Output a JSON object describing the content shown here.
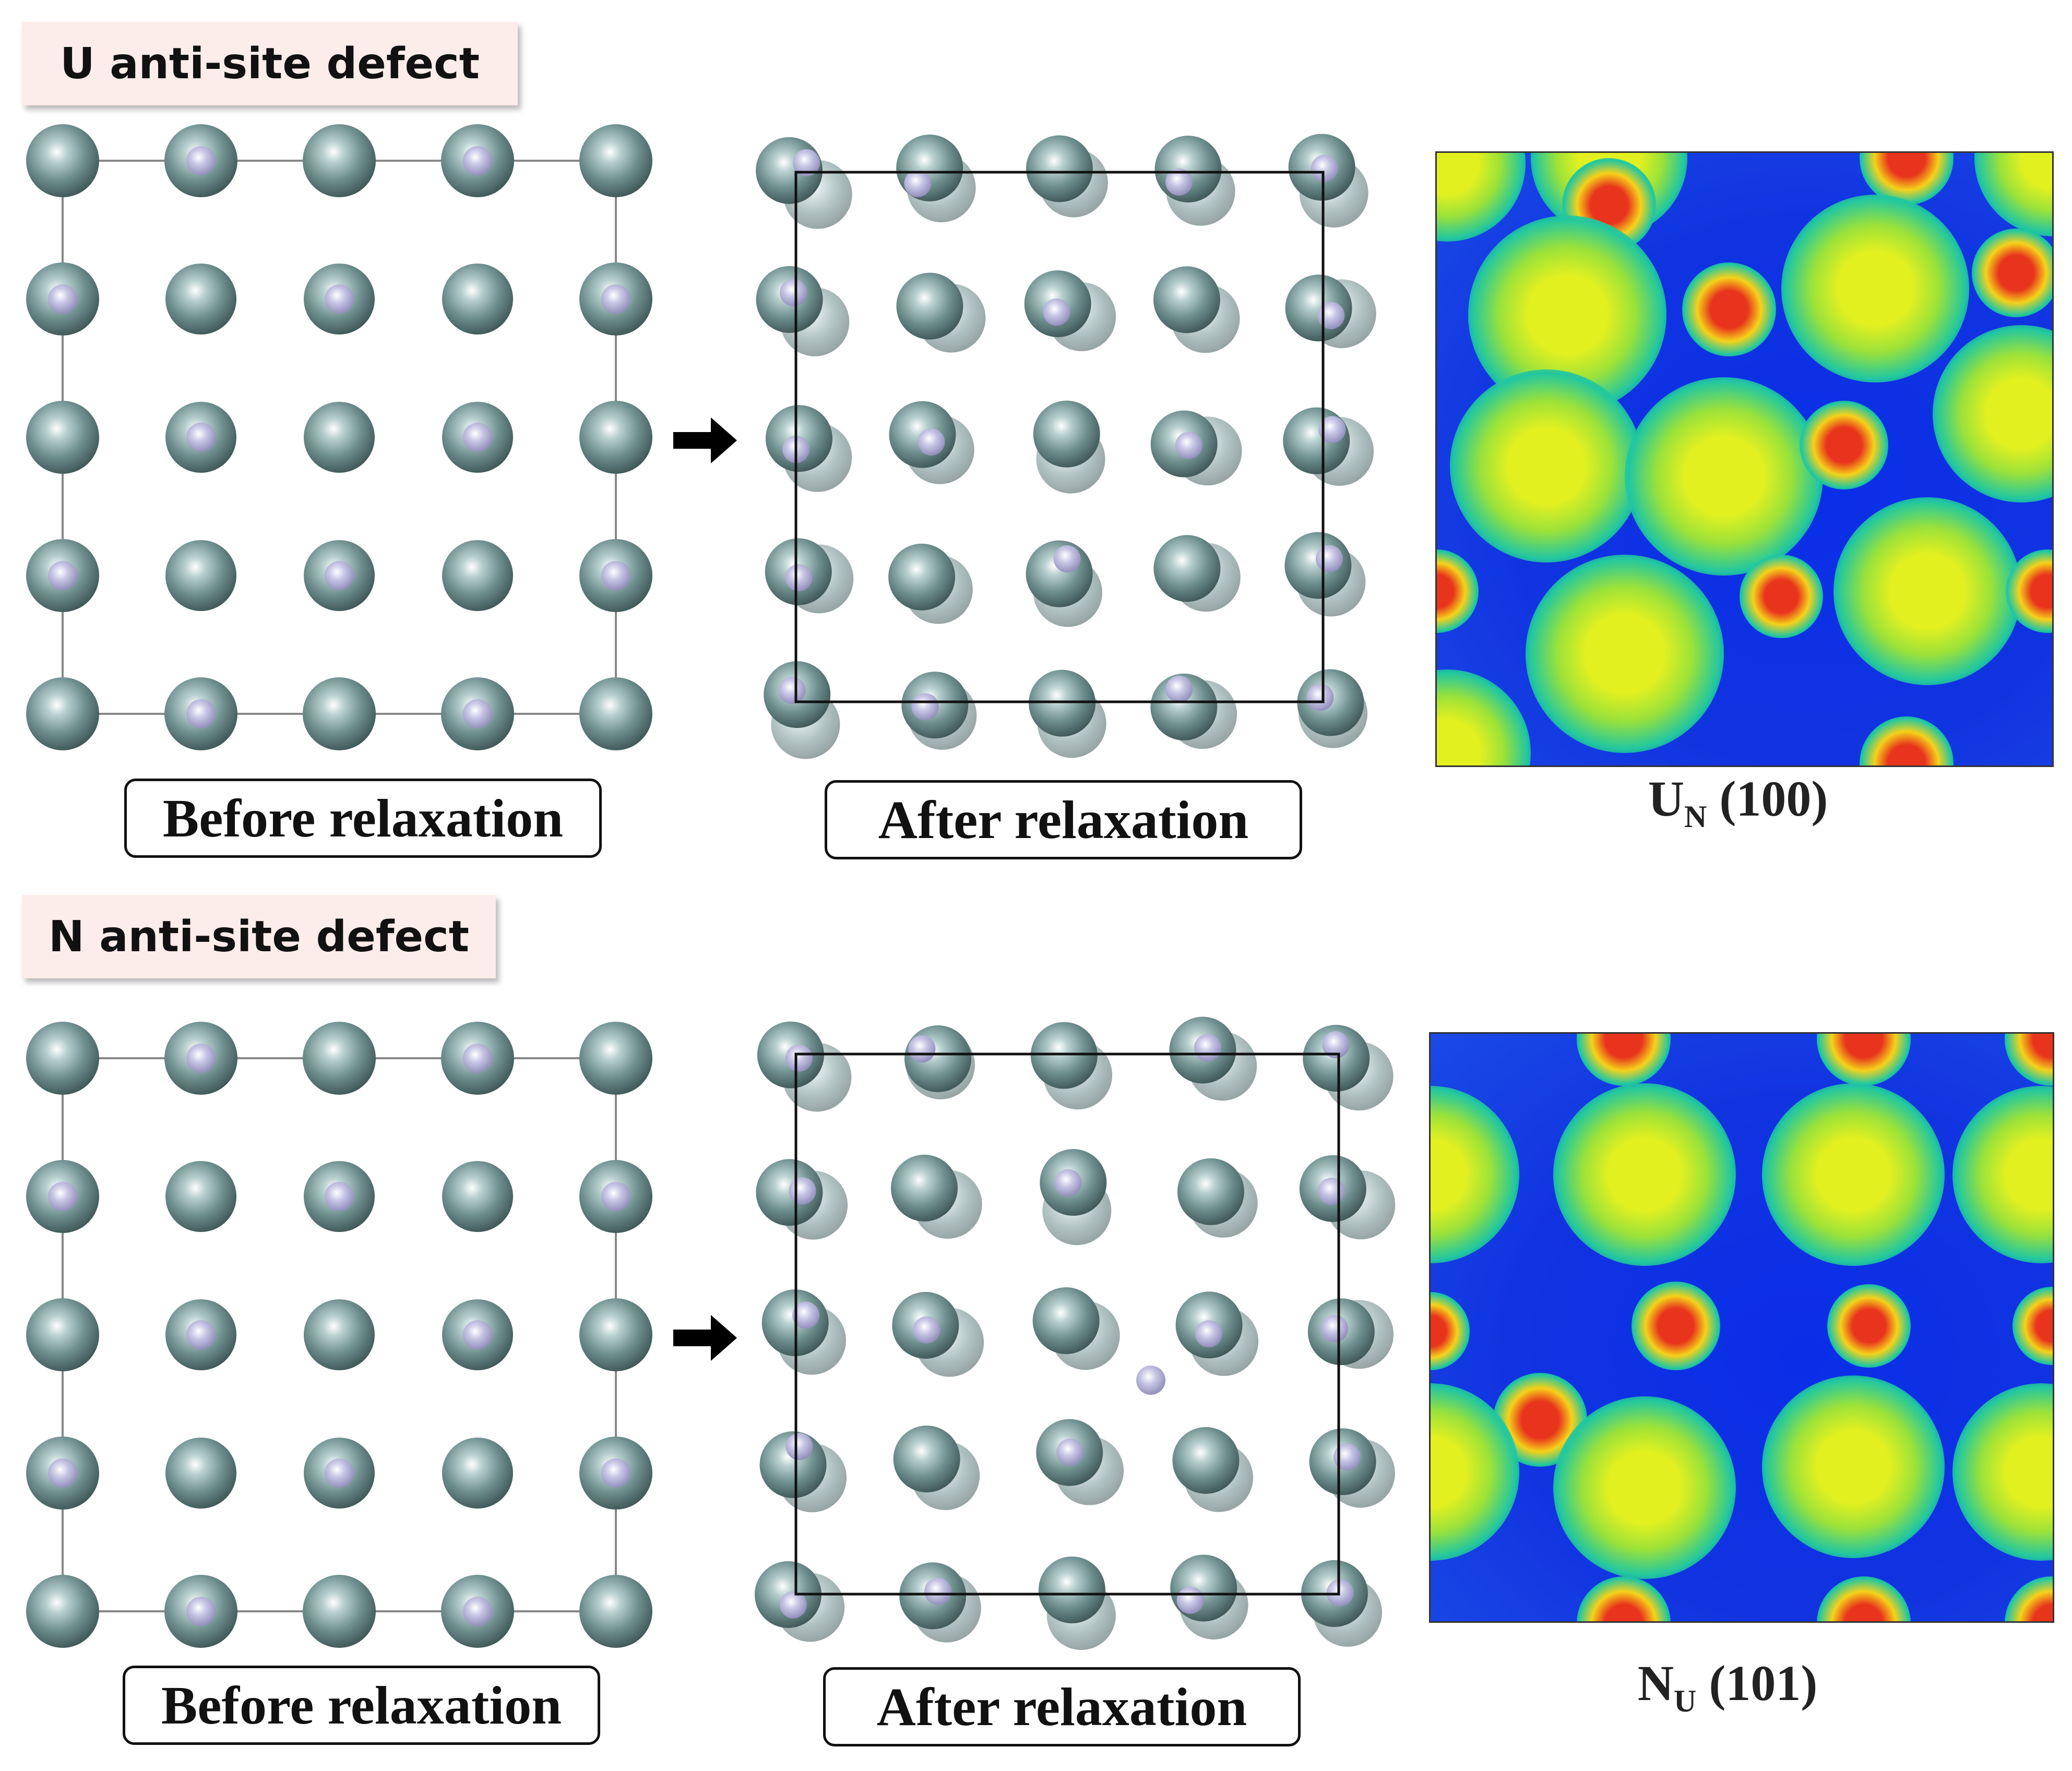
{
  "top_section": {
    "title": "U anti-site defect",
    "before_caption": "Before relaxation",
    "after_caption": "After relaxation",
    "map_label_main": "U",
    "map_label_sub": "N",
    "map_label_plane": " (100)"
  },
  "bottom_section": {
    "title": "N anti-site defect",
    "before_caption": "Before relaxation",
    "after_caption": "After relaxation",
    "map_label_main": "N",
    "map_label_sub": "U",
    "map_label_plane": " (101)"
  },
  "colors": {
    "u_atom": "#6f8f8f",
    "n_atom": "#c9c7e6",
    "map_background": "#1133e0",
    "map_low": "#21c7a0",
    "map_mid": "#e2f020",
    "map_high": "#e8341c",
    "cell_line": "#888888",
    "cell_line_after": "#111111"
  }
}
